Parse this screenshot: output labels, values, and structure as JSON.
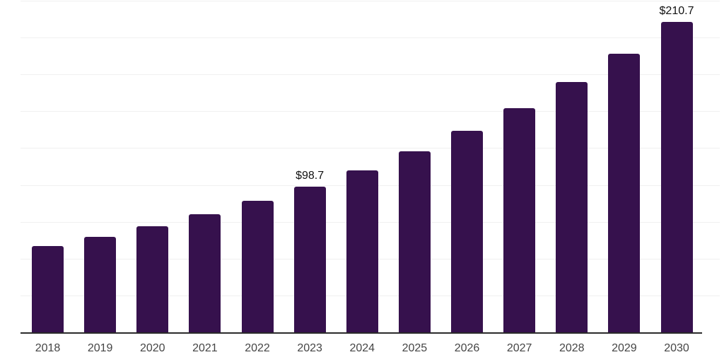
{
  "chart_data": {
    "type": "bar",
    "title": "",
    "xlabel": "",
    "ylabel": "",
    "categories": [
      "2018",
      "2019",
      "2020",
      "2021",
      "2022",
      "2023",
      "2024",
      "2025",
      "2026",
      "2027",
      "2028",
      "2029",
      "2030"
    ],
    "values": [
      58.3,
      65.0,
      72.0,
      80.3,
      89.0,
      98.7,
      110.0,
      122.6,
      136.6,
      152.3,
      169.7,
      189.1,
      210.7
    ],
    "data_labels": {
      "2023": "$98.7",
      "2030": "$210.7"
    },
    "ylim": [
      0,
      225
    ],
    "grid_step": 25,
    "grid_on": true,
    "legend": "none",
    "y_tick_labels_visible": false,
    "colors": {
      "bar": "#36114d",
      "gridline": "#f0f0f0",
      "axis_line": "#2b2b2b",
      "tick_label": "#454545",
      "data_label": "#111111",
      "background": "#ffffff"
    }
  }
}
